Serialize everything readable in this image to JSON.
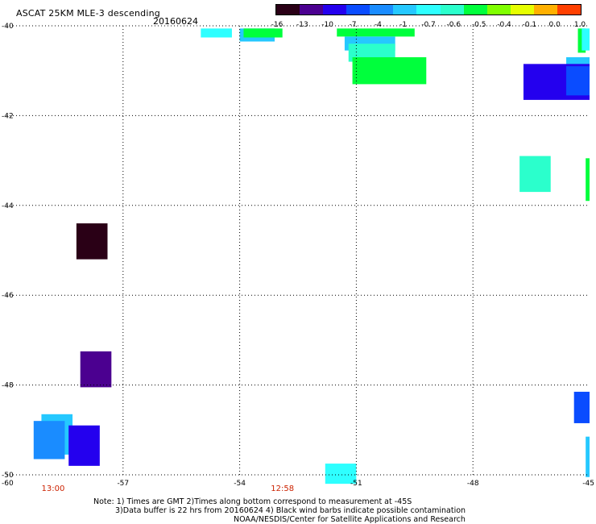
{
  "header": {
    "title": "ASCAT 25KM MLE-3 descending",
    "date": "20160624"
  },
  "colorbar": {
    "colors": [
      "#2a0016",
      "#4b0090",
      "#2400ee",
      "#0a4cff",
      "#1a8cff",
      "#25c8ff",
      "#2effff",
      "#2bffcc",
      "#00ff3c",
      "#80ff00",
      "#e6ff00",
      "#ffb000",
      "#ff4000"
    ],
    "labels": [
      "-16",
      "-13",
      "-10",
      "-7",
      "-4",
      "-1",
      "-0.7",
      "-0.6",
      "-0.5",
      "-0.4",
      "-0.1",
      "0.0",
      "1.0"
    ]
  },
  "axes": {
    "y_labels": [
      "-40",
      "-42",
      "-44",
      "-46",
      "-48",
      "-50"
    ],
    "x_labels": [
      "-60",
      "-57",
      "-54",
      "-51",
      "-48",
      "-45"
    ],
    "lon_range": [
      -60,
      -45
    ],
    "lat_range": [
      -40,
      -50
    ]
  },
  "time_labels": [
    {
      "lon": -58.8,
      "text": "13:00"
    },
    {
      "lon": -52.9,
      "text": "12:58"
    }
  ],
  "cells": [
    {
      "lon": [
        -55.0,
        -54.2
      ],
      "lat": [
        -40.06,
        -40.26
      ],
      "color": "#2effff"
    },
    {
      "lon": [
        -54.0,
        -53.1
      ],
      "lat": [
        -40.06,
        -40.35
      ],
      "color": "#25c8ff"
    },
    {
      "lon": [
        -53.9,
        -52.9
      ],
      "lat": [
        -40.06,
        -40.26
      ],
      "color": "#00ff3c"
    },
    {
      "lon": [
        -51.5,
        -49.5
      ],
      "lat": [
        -40.06,
        -40.24
      ],
      "color": "#00ff3c"
    },
    {
      "lon": [
        -51.3,
        -50.0
      ],
      "lat": [
        -40.24,
        -40.55
      ],
      "color": "#25c8ff"
    },
    {
      "lon": [
        -51.2,
        -50.0
      ],
      "lat": [
        -40.4,
        -40.8
      ],
      "color": "#2bffcc"
    },
    {
      "lon": [
        -51.1,
        -49.2
      ],
      "lat": [
        -40.7,
        -41.3
      ],
      "color": "#00ff3c"
    },
    {
      "lon": [
        -45.3,
        -45.1
      ],
      "lat": [
        -40.06,
        -40.6
      ],
      "color": "#00ff3c"
    },
    {
      "lon": [
        -45.2,
        -45.0
      ],
      "lat": [
        -40.06,
        -40.55
      ],
      "color": "#2effff"
    },
    {
      "lon": [
        -45.6,
        -45.0
      ],
      "lat": [
        -40.7,
        -41.0
      ],
      "color": "#25c8ff"
    },
    {
      "lon": [
        -46.7,
        -45.0
      ],
      "lat": [
        -40.85,
        -41.65
      ],
      "color": "#2400ee"
    },
    {
      "lon": [
        -45.6,
        -45.0
      ],
      "lat": [
        -40.9,
        -41.55
      ],
      "color": "#0a4cff"
    },
    {
      "lon": [
        -46.8,
        -46.0
      ],
      "lat": [
        -42.9,
        -43.7
      ],
      "color": "#2bffcc"
    },
    {
      "lon": [
        -45.1,
        -45.0
      ],
      "lat": [
        -42.95,
        -43.9
      ],
      "color": "#00ff3c"
    },
    {
      "lon": [
        -58.2,
        -57.4
      ],
      "lat": [
        -44.4,
        -45.2
      ],
      "color": "#2a0016"
    },
    {
      "lon": [
        -58.1,
        -57.3
      ],
      "lat": [
        -47.25,
        -48.05
      ],
      "color": "#4b0090"
    },
    {
      "lon": [
        -45.4,
        -45.0
      ],
      "lat": [
        -48.15,
        -48.85
      ],
      "color": "#0a4cff"
    },
    {
      "lon": [
        -59.1,
        -58.3
      ],
      "lat": [
        -48.65,
        -49.55
      ],
      "color": "#25c8ff"
    },
    {
      "lon": [
        -59.3,
        -58.5
      ],
      "lat": [
        -48.8,
        -49.65
      ],
      "color": "#1a8cff"
    },
    {
      "lon": [
        -58.4,
        -57.6
      ],
      "lat": [
        -48.9,
        -49.8
      ],
      "color": "#2400ee"
    },
    {
      "lon": [
        -45.1,
        -45.0
      ],
      "lat": [
        -49.15,
        -50.05
      ],
      "color": "#25c8ff"
    },
    {
      "lon": [
        -51.8,
        -51.0
      ],
      "lat": [
        -49.75,
        -50.2
      ],
      "color": "#2effff"
    }
  ],
  "notes": {
    "line1": "Note: 1) Times are GMT 2)Times along bottom correspond to measurement at -45S",
    "line2": "3)Data buffer is 22 hrs from 20160624 4) Black wind barbs indicate possible contamination",
    "line3": "NOAA/NESDIS/Center for Satellite Applications and Research"
  }
}
